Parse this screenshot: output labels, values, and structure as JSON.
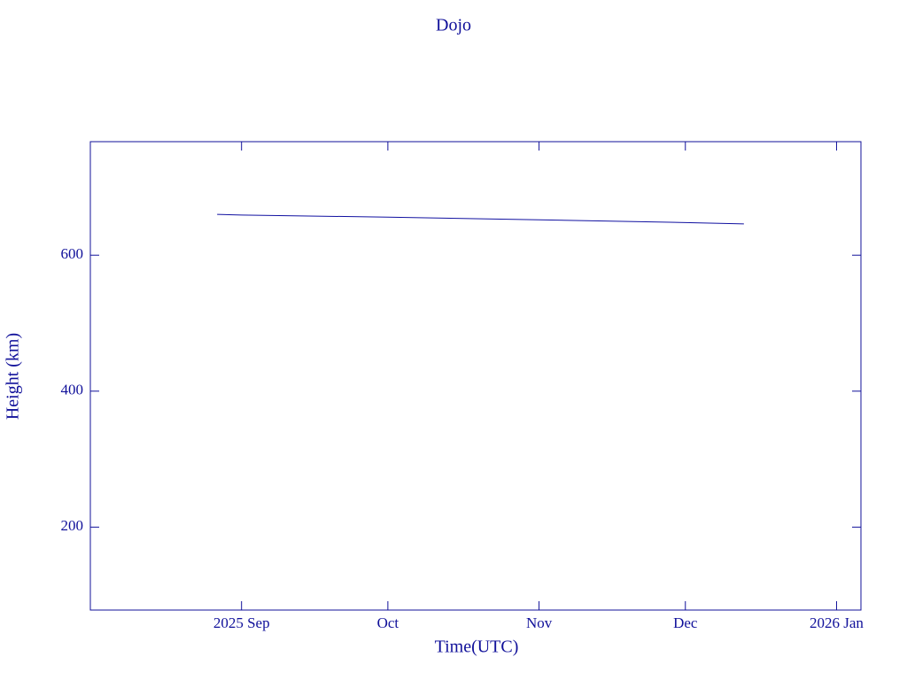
{
  "chart_data": {
    "type": "line",
    "title": "Dojo",
    "xlabel": "Time(UTC)",
    "ylabel": "Height (km)",
    "x": [
      "2025-08-27",
      "2025-09-01",
      "2025-10-01",
      "2025-11-01",
      "2025-12-01",
      "2025-12-13"
    ],
    "values": [
      660,
      659,
      656,
      652,
      648,
      646
    ],
    "color": "#1010a0",
    "xlim": [
      "2025-08-01",
      "2026-01-06"
    ],
    "xticks": [
      {
        "value": "2025-09-01",
        "label": "2025 Sep"
      },
      {
        "value": "2025-10-01",
        "label": "Oct"
      },
      {
        "value": "2025-11-01",
        "label": "Nov"
      },
      {
        "value": "2025-12-01",
        "label": "Dec"
      },
      {
        "value": "2026-01-01",
        "label": "2026 Jan"
      }
    ],
    "ylim": [
      78,
      767
    ],
    "yticks": [
      200,
      400,
      600
    ]
  }
}
